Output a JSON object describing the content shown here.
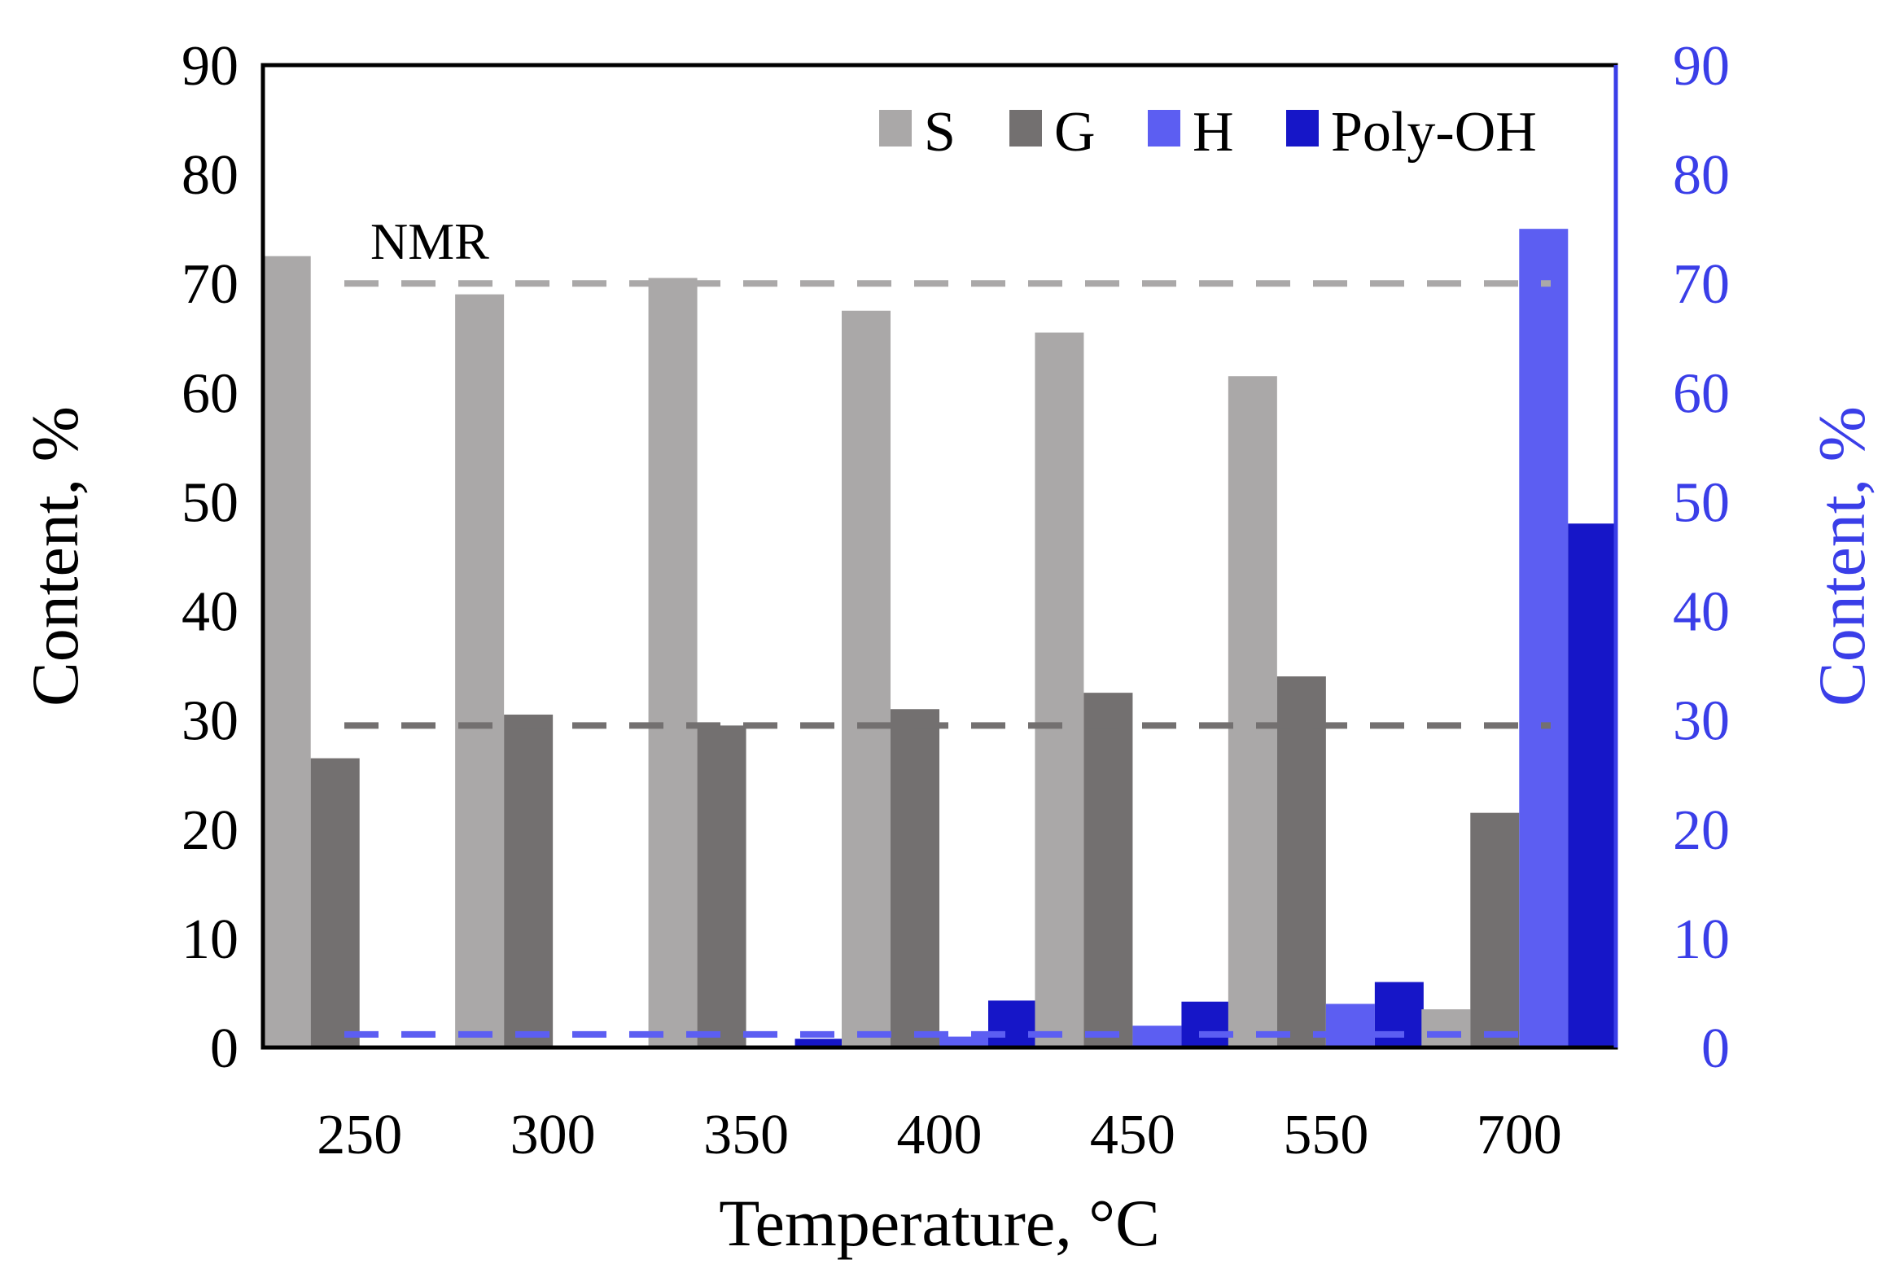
{
  "chart_data": {
    "type": "bar",
    "title": "",
    "xlabel": "Temperature, °C",
    "ylabel_left": "Content, %",
    "ylabel_right": "Content, %",
    "ylim_left": [
      0,
      90
    ],
    "ylim_right": [
      0,
      90
    ],
    "yticks_left": [
      "0",
      "10",
      "20",
      "30",
      "40",
      "50",
      "60",
      "70",
      "80",
      "90"
    ],
    "yticks_right": [
      "0",
      "10",
      "20",
      "30",
      "40",
      "50",
      "60",
      "70",
      "80",
      "90"
    ],
    "categories": [
      "250",
      "300",
      "350",
      "400",
      "450",
      "550",
      "700"
    ],
    "legend_position": "top-right",
    "series": [
      {
        "name": "S",
        "axis": "left",
        "color": "#aaa8a8",
        "values": [
          72.5,
          69,
          70.5,
          67.5,
          65.5,
          61.5,
          3.5
        ]
      },
      {
        "name": "G",
        "axis": "left",
        "color": "#737070",
        "values": [
          26.5,
          30.5,
          29.5,
          31,
          32.5,
          34,
          21.5
        ]
      },
      {
        "name": "H",
        "axis": "right",
        "color": "#5c5ef2",
        "values": [
          0,
          0,
          0,
          1,
          2,
          4,
          75
        ]
      },
      {
        "name": "Poly-OH",
        "axis": "right",
        "color": "#1616c8",
        "values": [
          0,
          0,
          0.8,
          4.3,
          4.2,
          6,
          48
        ]
      }
    ],
    "reference_lines": [
      {
        "label": "NMR",
        "axis": "left",
        "value": 70,
        "color": "#aaa8a8",
        "style": "dashed"
      },
      {
        "axis": "left",
        "value": 29.5,
        "color": "#737070",
        "style": "dashed"
      },
      {
        "axis": "right",
        "value": 1.2,
        "color": "#5c5ef2",
        "style": "dashed"
      }
    ],
    "annotations": [
      {
        "text": "NMR"
      }
    ],
    "axis_colors": {
      "left": "#000000",
      "right": "#3a3ee8"
    }
  }
}
